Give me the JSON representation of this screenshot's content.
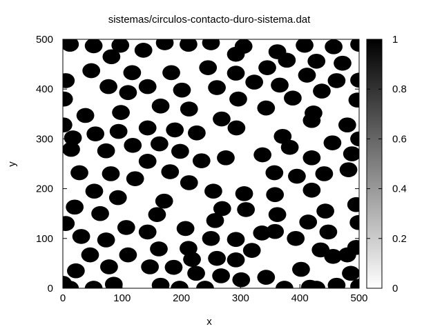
{
  "chart_data": {
    "type": "heatmap",
    "title": "sistemas/circulos-contacto-duro-sistema.dat",
    "xlabel": "x",
    "ylabel": "y",
    "xlim": [
      0,
      500
    ],
    "ylim": [
      0,
      500
    ],
    "xticks": [
      "0",
      "100",
      "200",
      "300",
      "400",
      "500"
    ],
    "yticks": [
      "0",
      "100",
      "200",
      "300",
      "400",
      "500"
    ],
    "colorbar": {
      "range": [
        0,
        1
      ],
      "ticks": [
        "0",
        "0.2",
        "0.4",
        "0.6",
        "0.8",
        "1"
      ],
      "palette": "white-to-black"
    },
    "disk_radius": 15,
    "disk_value": 1,
    "background_value": 0,
    "disks": [
      [
        12,
        490
      ],
      [
        52,
        487
      ],
      [
        97,
        488
      ],
      [
        136,
        478
      ],
      [
        172,
        493
      ],
      [
        212,
        490
      ],
      [
        250,
        493
      ],
      [
        305,
        486
      ],
      [
        362,
        475
      ],
      [
        408,
        488
      ],
      [
        457,
        485
      ],
      [
        500,
        490
      ],
      [
        82,
        465
      ],
      [
        292,
        470
      ],
      [
        378,
        458
      ],
      [
        428,
        456
      ],
      [
        48,
        437
      ],
      [
        117,
        433
      ],
      [
        183,
        433
      ],
      [
        245,
        443
      ],
      [
        292,
        432
      ],
      [
        345,
        443
      ],
      [
        412,
        428
      ],
      [
        472,
        452
      ],
      [
        5,
        417
      ],
      [
        77,
        405
      ],
      [
        143,
        405
      ],
      [
        201,
        398
      ],
      [
        260,
        403
      ],
      [
        323,
        414
      ],
      [
        366,
        408
      ],
      [
        437,
        396
      ],
      [
        462,
        417
      ],
      [
        500,
        418
      ],
      [
        110,
        393
      ],
      [
        2,
        380
      ],
      [
        165,
        366
      ],
      [
        213,
        360
      ],
      [
        296,
        380
      ],
      [
        343,
        362
      ],
      [
        388,
        382
      ],
      [
        497,
        378
      ],
      [
        38,
        347
      ],
      [
        98,
        353
      ],
      [
        268,
        340
      ],
      [
        423,
        352
      ],
      [
        1,
        328
      ],
      [
        17,
        302
      ],
      [
        55,
        310
      ],
      [
        94,
        315
      ],
      [
        143,
        322
      ],
      [
        189,
        318
      ],
      [
        226,
        312
      ],
      [
        293,
        322
      ],
      [
        371,
        305
      ],
      [
        420,
        337
      ],
      [
        480,
        328
      ],
      [
        500,
        300
      ],
      [
        14,
        279
      ],
      [
        73,
        276
      ],
      [
        118,
        287
      ],
      [
        163,
        290
      ],
      [
        198,
        275
      ],
      [
        234,
        256
      ],
      [
        275,
        262
      ],
      [
        337,
        268
      ],
      [
        383,
        283
      ],
      [
        420,
        262
      ],
      [
        455,
        292
      ],
      [
        488,
        270
      ],
      [
        28,
        232
      ],
      [
        81,
        230
      ],
      [
        143,
        255
      ],
      [
        181,
        234
      ],
      [
        357,
        232
      ],
      [
        395,
        225
      ],
      [
        441,
        230
      ],
      [
        482,
        238
      ],
      [
        53,
        195
      ],
      [
        122,
        220
      ],
      [
        213,
        212
      ],
      [
        254,
        195
      ],
      [
        306,
        190
      ],
      [
        358,
        188
      ],
      [
        420,
        197
      ],
      [
        20,
        163
      ],
      [
        93,
        182
      ],
      [
        171,
        175
      ],
      [
        269,
        160
      ],
      [
        309,
        158
      ],
      [
        362,
        148
      ],
      [
        443,
        155
      ],
      [
        495,
        168
      ],
      [
        63,
        150
      ],
      [
        159,
        148
      ],
      [
        5,
        130
      ],
      [
        107,
        122
      ],
      [
        143,
        113
      ],
      [
        207,
        120
      ],
      [
        257,
        136
      ],
      [
        336,
        111
      ],
      [
        393,
        100
      ],
      [
        414,
        133
      ],
      [
        448,
        113
      ],
      [
        499,
        132
      ],
      [
        31,
        104
      ],
      [
        73,
        97
      ],
      [
        250,
        100
      ],
      [
        292,
        98
      ],
      [
        358,
        114
      ],
      [
        162,
        79
      ],
      [
        212,
        80
      ],
      [
        319,
        76
      ],
      [
        435,
        77
      ],
      [
        456,
        64
      ],
      [
        495,
        82
      ],
      [
        46,
        67
      ],
      [
        110,
        67
      ],
      [
        218,
        58
      ],
      [
        260,
        60
      ],
      [
        292,
        57
      ],
      [
        480,
        67
      ],
      [
        22,
        35
      ],
      [
        78,
        43
      ],
      [
        147,
        43
      ],
      [
        187,
        42
      ],
      [
        225,
        30
      ],
      [
        267,
        25
      ],
      [
        301,
        17
      ],
      [
        343,
        22
      ],
      [
        402,
        38
      ],
      [
        486,
        30
      ],
      [
        0,
        10
      ],
      [
        12,
        0
      ],
      [
        52,
        0
      ],
      [
        86,
        8
      ],
      [
        165,
        6
      ],
      [
        197,
        0
      ],
      [
        240,
        0
      ],
      [
        374,
        0
      ],
      [
        417,
        2
      ],
      [
        428,
        0
      ],
      [
        462,
        6
      ],
      [
        500,
        4
      ]
    ]
  }
}
